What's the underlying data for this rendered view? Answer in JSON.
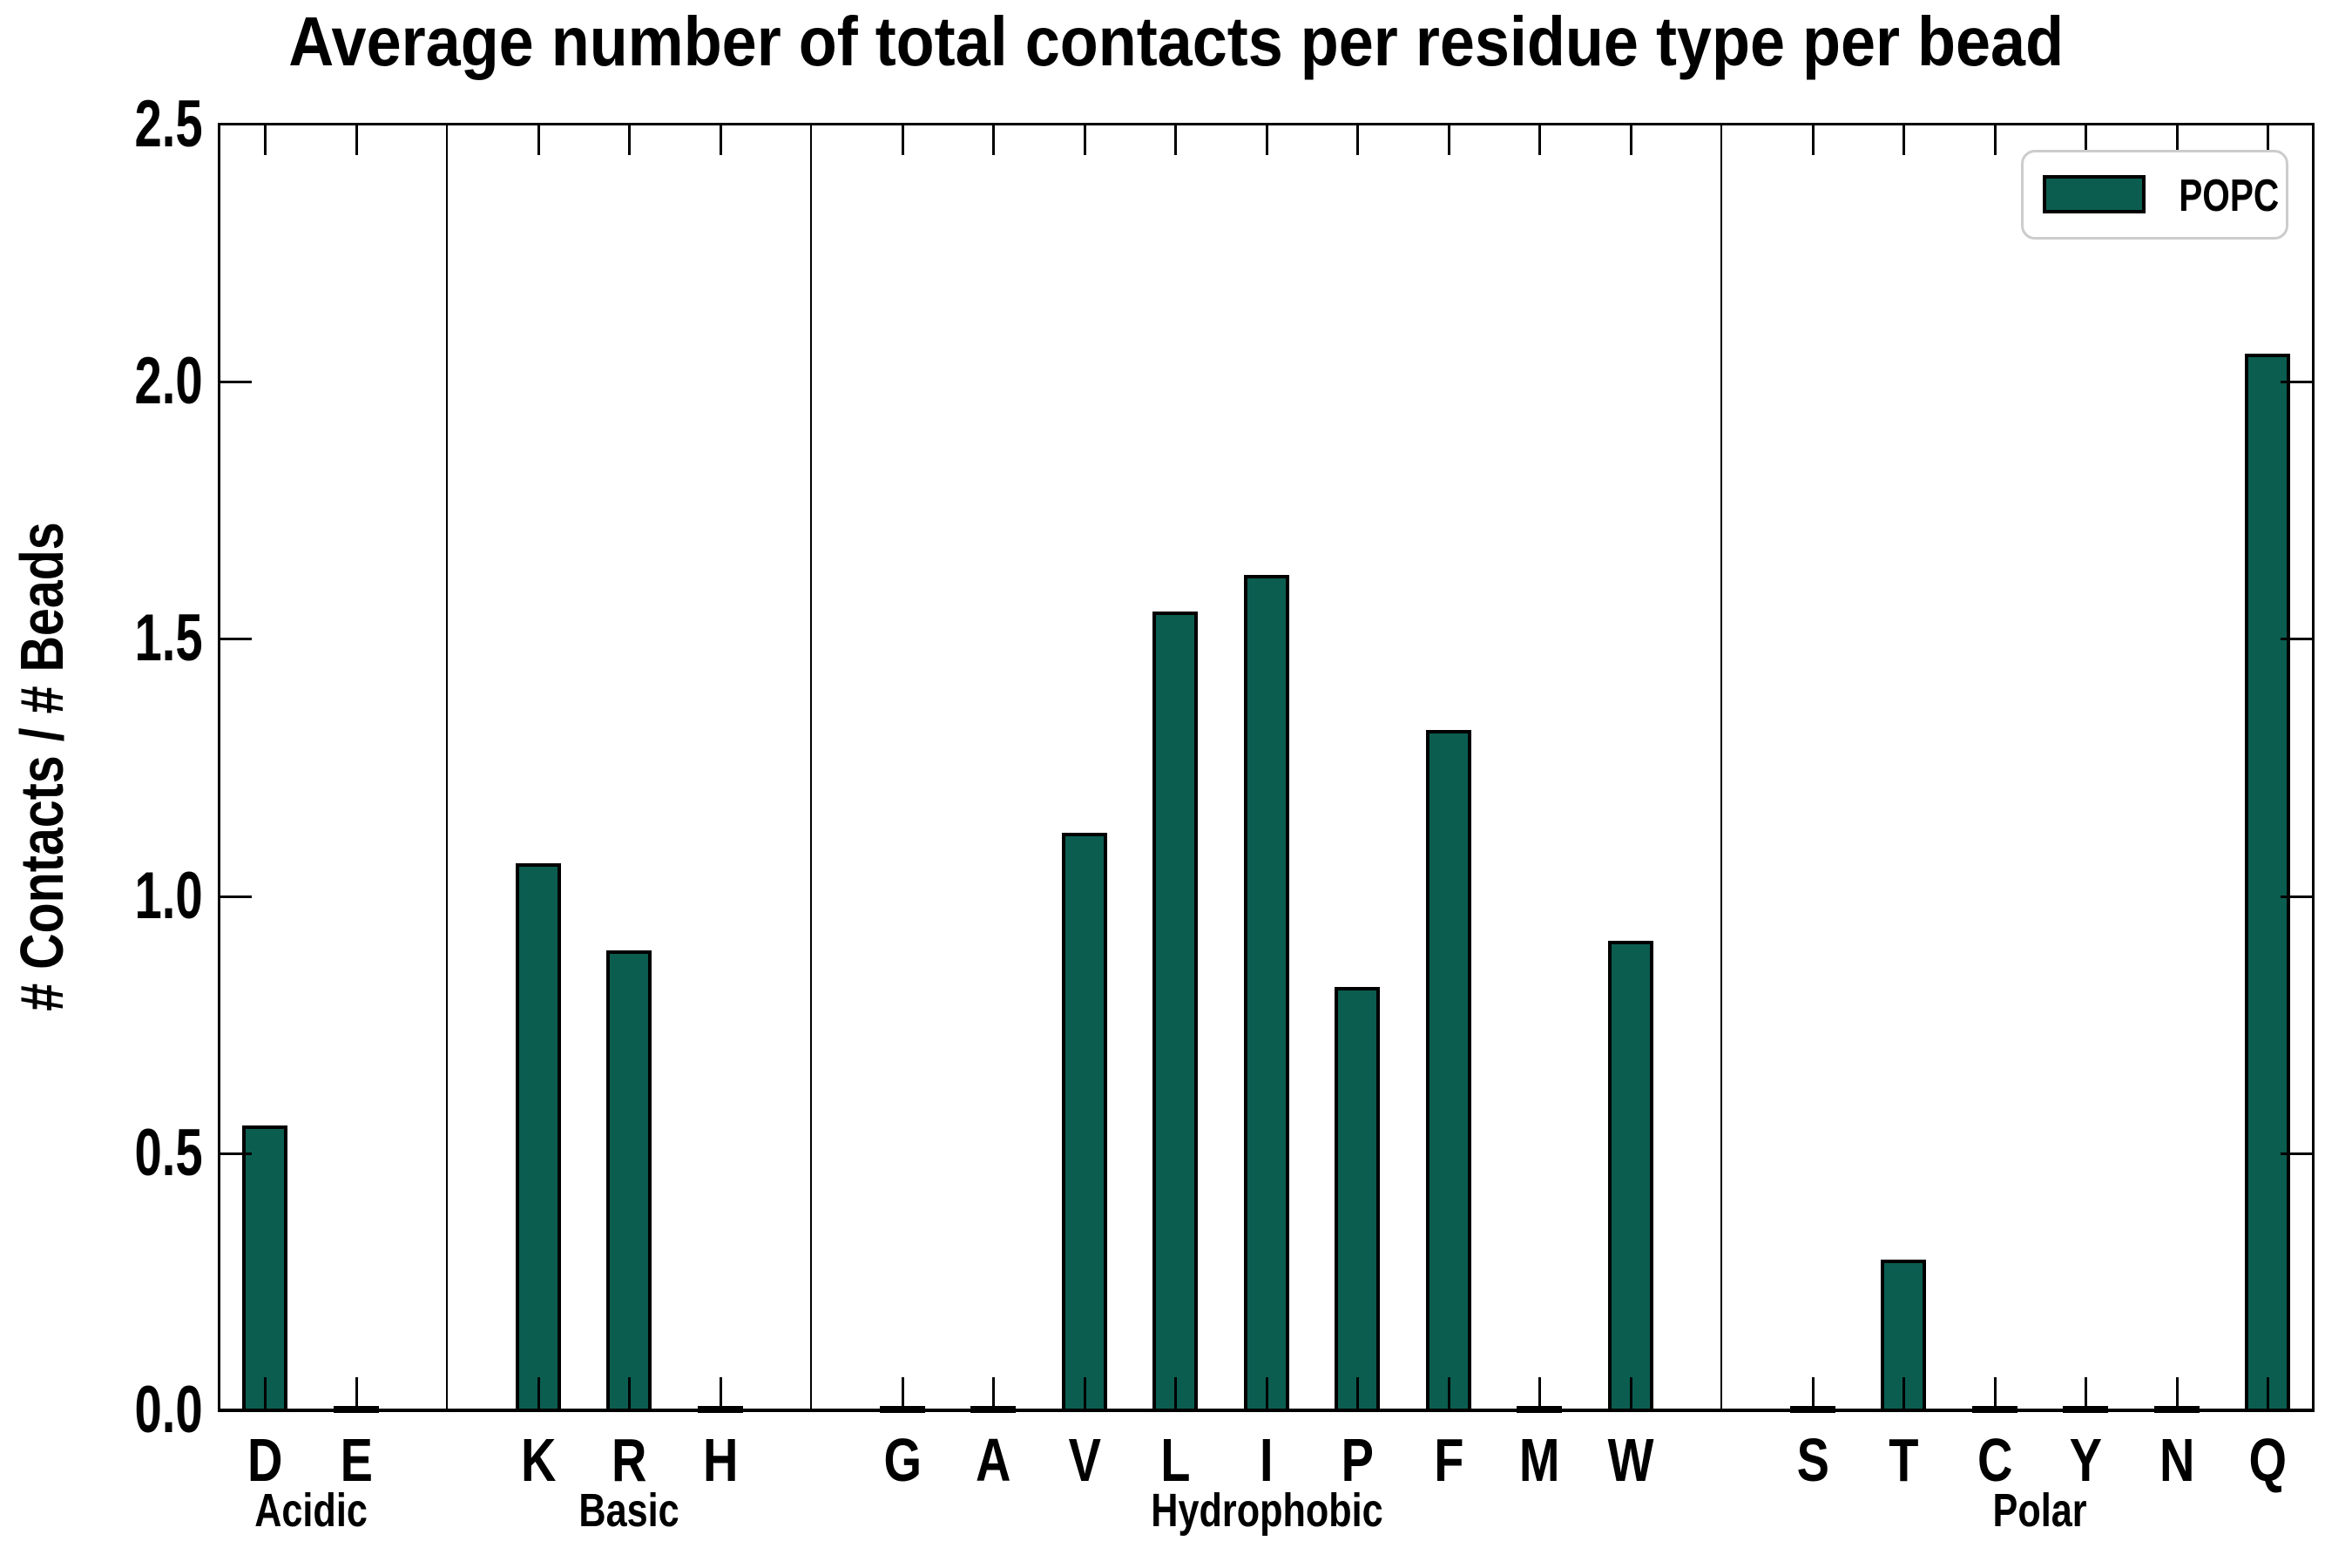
{
  "chart_data": {
    "type": "bar",
    "title": "Average number of total contacts per residue type per bead",
    "ylabel": "# Contacts / # Beads",
    "ylim": [
      0,
      2.5
    ],
    "yticks": [
      "0.0",
      "0.5",
      "1.0",
      "1.5",
      "2.0",
      "2.5"
    ],
    "grid": false,
    "legend_position": "upper right",
    "legend": [
      {
        "label": "POPC",
        "color": "#0b5d50"
      }
    ],
    "bar_edge_color": "#000000",
    "legend_border_color": "#cccccc",
    "groups": [
      {
        "name": "Acidic",
        "categories": [
          "D",
          "E"
        ],
        "values": [
          0.55,
          0.005
        ]
      },
      {
        "name": "Basic",
        "categories": [
          "K",
          "R",
          "H"
        ],
        "values": [
          1.06,
          0.89,
          0.005
        ]
      },
      {
        "name": "Hydrophobic",
        "categories": [
          "G",
          "A",
          "V",
          "L",
          "I",
          "P",
          "F",
          "M",
          "W"
        ],
        "values": [
          0.005,
          0.005,
          1.12,
          1.55,
          1.62,
          0.82,
          1.32,
          0.005,
          0.91
        ]
      },
      {
        "name": "Polar",
        "categories": [
          "S",
          "T",
          "C",
          "Y",
          "N",
          "Q"
        ],
        "values": [
          0.005,
          0.29,
          0.005,
          0.005,
          0.005,
          2.05
        ]
      }
    ]
  }
}
